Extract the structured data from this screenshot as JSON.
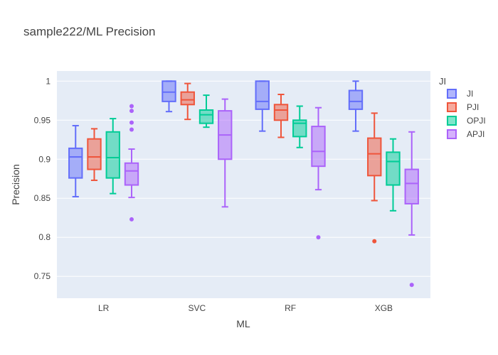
{
  "chart_data": {
    "type": "box",
    "title": "sample222/ML Precision",
    "xlabel": "ML",
    "ylabel": "Precision",
    "ylim": [
      0.722,
      1.013
    ],
    "yticks": [
      0.75,
      0.8,
      0.85,
      0.9,
      0.95,
      1
    ],
    "ytick_labels": [
      "0.75",
      "0.8",
      "0.85",
      "0.9",
      "0.95",
      "1"
    ],
    "grid": true,
    "legend_title": "JI",
    "legend_position": "right",
    "categories": [
      "LR",
      "SVC",
      "RF",
      "XGB"
    ],
    "series": [
      {
        "name": "JI",
        "color": "#636efa",
        "boxes": [
          {
            "min": 0.852,
            "q1": 0.876,
            "median": 0.903,
            "q3": 0.914,
            "max": 0.943,
            "outliers": []
          },
          {
            "min": 0.961,
            "q1": 0.974,
            "median": 0.986,
            "q3": 1.0,
            "max": 1.0,
            "outliers": []
          },
          {
            "min": 0.936,
            "q1": 0.964,
            "median": 0.974,
            "q3": 1.0,
            "max": 1.0,
            "outliers": []
          },
          {
            "min": 0.936,
            "q1": 0.964,
            "median": 0.974,
            "q3": 0.988,
            "max": 1.0,
            "outliers": []
          }
        ]
      },
      {
        "name": "PJI",
        "color": "#ef553b",
        "boxes": [
          {
            "min": 0.873,
            "q1": 0.887,
            "median": 0.903,
            "q3": 0.926,
            "max": 0.939,
            "outliers": []
          },
          {
            "min": 0.951,
            "q1": 0.97,
            "median": 0.976,
            "q3": 0.986,
            "max": 0.997,
            "outliers": []
          },
          {
            "min": 0.928,
            "q1": 0.95,
            "median": 0.963,
            "q3": 0.97,
            "max": 0.983,
            "outliers": []
          },
          {
            "min": 0.847,
            "q1": 0.879,
            "median": 0.907,
            "q3": 0.927,
            "max": 0.959,
            "outliers": [
              0.795
            ]
          }
        ]
      },
      {
        "name": "OPJI",
        "color": "#00cc96",
        "boxes": [
          {
            "min": 0.856,
            "q1": 0.876,
            "median": 0.902,
            "q3": 0.935,
            "max": 0.952,
            "outliers": []
          },
          {
            "min": 0.941,
            "q1": 0.946,
            "median": 0.957,
            "q3": 0.963,
            "max": 0.982,
            "outliers": []
          },
          {
            "min": 0.915,
            "q1": 0.929,
            "median": 0.946,
            "q3": 0.95,
            "max": 0.968,
            "outliers": []
          },
          {
            "min": 0.834,
            "q1": 0.867,
            "median": 0.897,
            "q3": 0.909,
            "max": 0.926,
            "outliers": []
          }
        ]
      },
      {
        "name": "APJI",
        "color": "#ab63fa",
        "boxes": [
          {
            "min": 0.851,
            "q1": 0.867,
            "median": 0.885,
            "q3": 0.895,
            "max": 0.913,
            "outliers": [
              0.823,
              0.938,
              0.947,
              0.962,
              0.968
            ]
          },
          {
            "min": 0.839,
            "q1": 0.9,
            "median": 0.931,
            "q3": 0.962,
            "max": 0.977,
            "outliers": []
          },
          {
            "min": 0.861,
            "q1": 0.891,
            "median": 0.91,
            "q3": 0.942,
            "max": 0.966,
            "outliers": [
              0.8
            ]
          },
          {
            "min": 0.803,
            "q1": 0.843,
            "median": 0.869,
            "q3": 0.887,
            "max": 0.935,
            "outliers": [
              0.739
            ]
          }
        ]
      }
    ]
  }
}
